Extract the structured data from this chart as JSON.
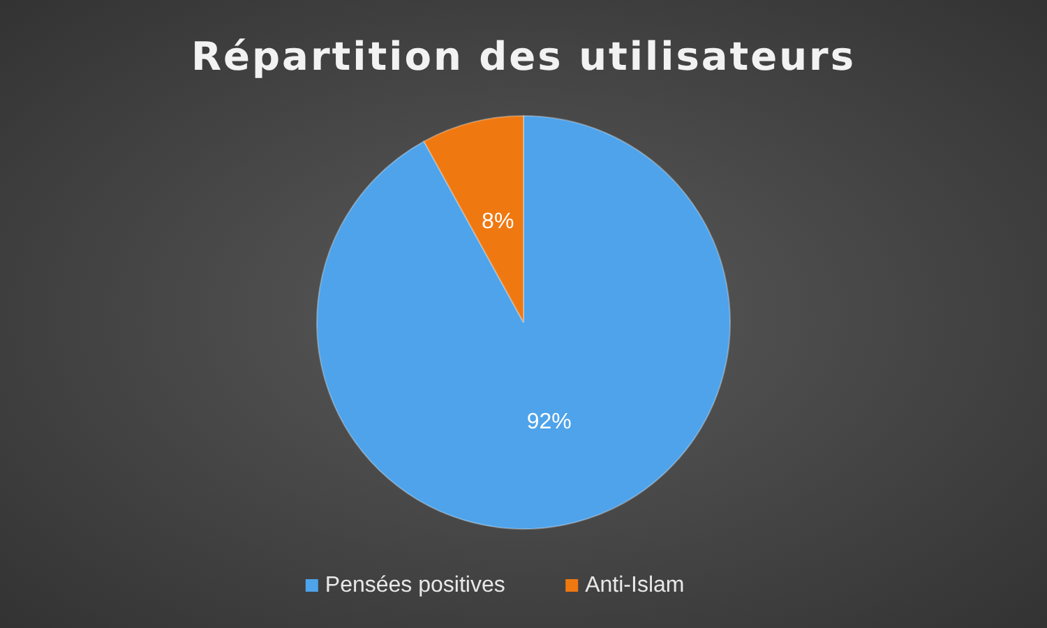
{
  "chart_data": {
    "type": "pie",
    "title": "Répartition des utilisateurs",
    "categories": [
      "Pensées positives",
      "Anti-Islam"
    ],
    "values": [
      92,
      8
    ],
    "colors": [
      "#4ea3ea",
      "#f07810"
    ],
    "value_labels": [
      "92%",
      "8%"
    ],
    "legend": "bottom"
  }
}
